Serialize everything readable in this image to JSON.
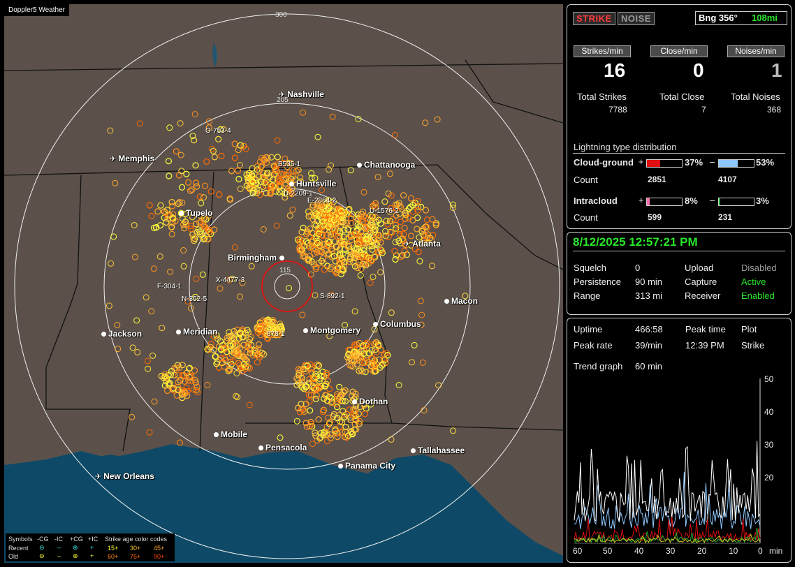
{
  "app": {
    "title": "Doppler5 Weather"
  },
  "map": {
    "ring_labels": [
      "300",
      "205",
      "115"
    ],
    "cities": [
      {
        "name": "Nashville",
        "type": "airport"
      },
      {
        "name": "Memphis",
        "type": "airport"
      },
      {
        "name": "Chattanooga",
        "type": "city"
      },
      {
        "name": "Huntsville",
        "type": "city"
      },
      {
        "name": "Tupelo",
        "type": "city"
      },
      {
        "name": "Atlanta",
        "type": "airport"
      },
      {
        "name": "Birmingham",
        "type": "city"
      },
      {
        "name": "Macon",
        "type": "city"
      },
      {
        "name": "Jackson",
        "type": "city"
      },
      {
        "name": "Meridian",
        "type": "city"
      },
      {
        "name": "Montgomery",
        "type": "city"
      },
      {
        "name": "Columbus",
        "type": "city"
      },
      {
        "name": "Dothan",
        "type": "city"
      },
      {
        "name": "Mobile",
        "type": "city"
      },
      {
        "name": "Pensacola",
        "type": "city"
      },
      {
        "name": "Tallahassee",
        "type": "city"
      },
      {
        "name": "Panama City",
        "type": "city"
      },
      {
        "name": "New Orleans",
        "type": "airport"
      }
    ],
    "cell_labels": [
      "O-753-4",
      "B535-1",
      "D-2209-1",
      "E-2864-2",
      "U-1576-2",
      "X-4477-3",
      "F-304-1",
      "N-352-5",
      "S-892-1",
      "878-1"
    ],
    "legend": {
      "symbols_title": "Symbols",
      "columns": [
        "-CG",
        "-IC",
        "+CG",
        "+IC"
      ],
      "rows": [
        "Recent",
        "Old"
      ],
      "age_title": "Strike age color codes",
      "age_recent": [
        "15+",
        "30+",
        "45+"
      ],
      "age_old": [
        "60+",
        "75+",
        "90+"
      ],
      "age_colors_recent": [
        "#ffff3a",
        "#ffc83a",
        "#ffa52a"
      ],
      "age_colors_old": [
        "#ff8c1a",
        "#ff6a00",
        "#ff4500"
      ]
    }
  },
  "status": {
    "strike_btn": "STRIKE",
    "noise_btn": "NOISE",
    "bearing_label": "Bng 356°",
    "bearing_distance": "108mi",
    "headers": [
      "Strikes/min",
      "Close/min",
      "Noises/min"
    ],
    "rates": [
      "16",
      "0",
      "1"
    ],
    "totals_labels": [
      "Total Strikes",
      "Total Close",
      "Total Noises"
    ],
    "totals_values": [
      "7788",
      "7",
      "368"
    ],
    "dist_title": "Lightning type distribution",
    "cloud_ground_label": "Cloud-ground",
    "intracloud_label": "Intracloud",
    "plus": "+",
    "minus": "–",
    "count_label": "Count",
    "cg_pos_pct": "37%",
    "cg_neg_pct": "53%",
    "cg_pos_count": "2851",
    "cg_neg_count": "4107",
    "ic_pos_pct": "8%",
    "ic_neg_pct": "3%",
    "ic_pos_count": "599",
    "ic_neg_count": "231",
    "cg_pos_level": 0.37,
    "cg_neg_level": 0.53,
    "ic_pos_level": 0.08,
    "ic_neg_level": 0.03,
    "colors": {
      "cg_pos": "#e01010",
      "cg_neg": "#8ec8ff",
      "ic_pos": "#ff6fb4",
      "ic_neg": "#22aa33"
    }
  },
  "system": {
    "datetime": "8/12/2025 12:57:21 PM",
    "squelch_label": "Squelch",
    "squelch_value": "0",
    "persistence_label": "Persistence",
    "persistence_value": "90 min",
    "range_label": "Range",
    "range_value": "313 mi",
    "upload_label": "Upload",
    "upload_value": "Disabled",
    "capture_label": "Capture",
    "capture_value": "Active",
    "receiver_label": "Receiver",
    "receiver_value": "Enabled"
  },
  "trend": {
    "uptime_label": "Uptime",
    "uptime_value": "466:58",
    "peak_time_label": "Peak time",
    "peak_time_value": "12:39 PM",
    "plot_label": "Plot",
    "plot_value": "Strike",
    "peak_rate_label": "Peak rate",
    "peak_rate_value": "39/min",
    "graph_label": "Trend graph",
    "graph_value": "60 min",
    "y_ticks": [
      "50",
      "40",
      "30",
      "20"
    ],
    "x_ticks": [
      "60",
      "50",
      "40",
      "30",
      "20",
      "10",
      "0"
    ],
    "x_unit": "min"
  }
}
